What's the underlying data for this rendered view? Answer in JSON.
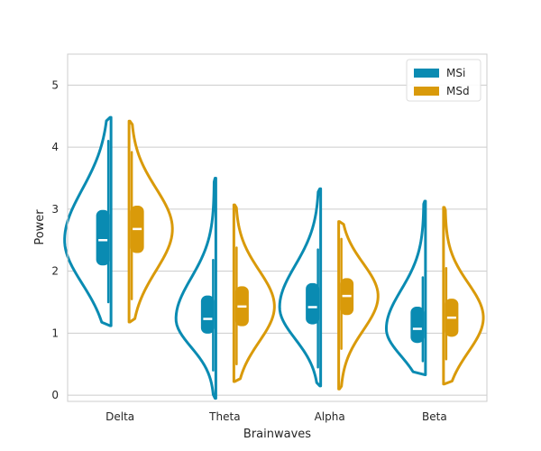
{
  "chart_data": {
    "type": "violin",
    "xlabel": "Brainwaves",
    "ylabel": "Power",
    "categories": [
      "Delta",
      "Theta",
      "Alpha",
      "Beta"
    ],
    "ylim": [
      -0.1,
      5.5
    ],
    "yticks": [
      0,
      1,
      2,
      3,
      4,
      5
    ],
    "grid": "horizontal",
    "legend_position": "top-right",
    "series": [
      {
        "name": "MSi",
        "color": "#0a8bb2",
        "side": "left",
        "box": [
          {
            "q1": 2.1,
            "median": 2.5,
            "q3": 2.98,
            "whisker_low": 1.5,
            "whisker_high": 4.1
          },
          {
            "q1": 1.0,
            "median": 1.23,
            "q3": 1.6,
            "whisker_low": 0.4,
            "whisker_high": 2.18
          },
          {
            "q1": 1.15,
            "median": 1.42,
            "q3": 1.8,
            "whisker_low": 0.45,
            "whisker_high": 2.35
          },
          {
            "q1": 0.85,
            "median": 1.07,
            "q3": 1.42,
            "whisker_low": 0.55,
            "whisker_high": 1.9
          }
        ],
        "range": [
          [
            1.12,
            4.48
          ],
          [
            -0.05,
            3.5
          ],
          [
            0.15,
            3.33
          ],
          [
            0.33,
            3.13
          ]
        ]
      },
      {
        "name": "MSd",
        "color": "#d99a0a",
        "side": "right",
        "box": [
          {
            "q1": 2.3,
            "median": 2.68,
            "q3": 3.05,
            "whisker_low": 1.55,
            "whisker_high": 3.92
          },
          {
            "q1": 1.12,
            "median": 1.43,
            "q3": 1.75,
            "whisker_low": 0.5,
            "whisker_high": 2.38
          },
          {
            "q1": 1.3,
            "median": 1.6,
            "q3": 1.88,
            "whisker_low": 0.75,
            "whisker_high": 2.52
          },
          {
            "q1": 0.95,
            "median": 1.25,
            "q3": 1.55,
            "whisker_low": 0.58,
            "whisker_high": 2.05
          }
        ],
        "range": [
          [
            1.18,
            4.42
          ],
          [
            0.22,
            3.07
          ],
          [
            0.1,
            2.8
          ],
          [
            0.18,
            3.03
          ]
        ]
      }
    ]
  }
}
